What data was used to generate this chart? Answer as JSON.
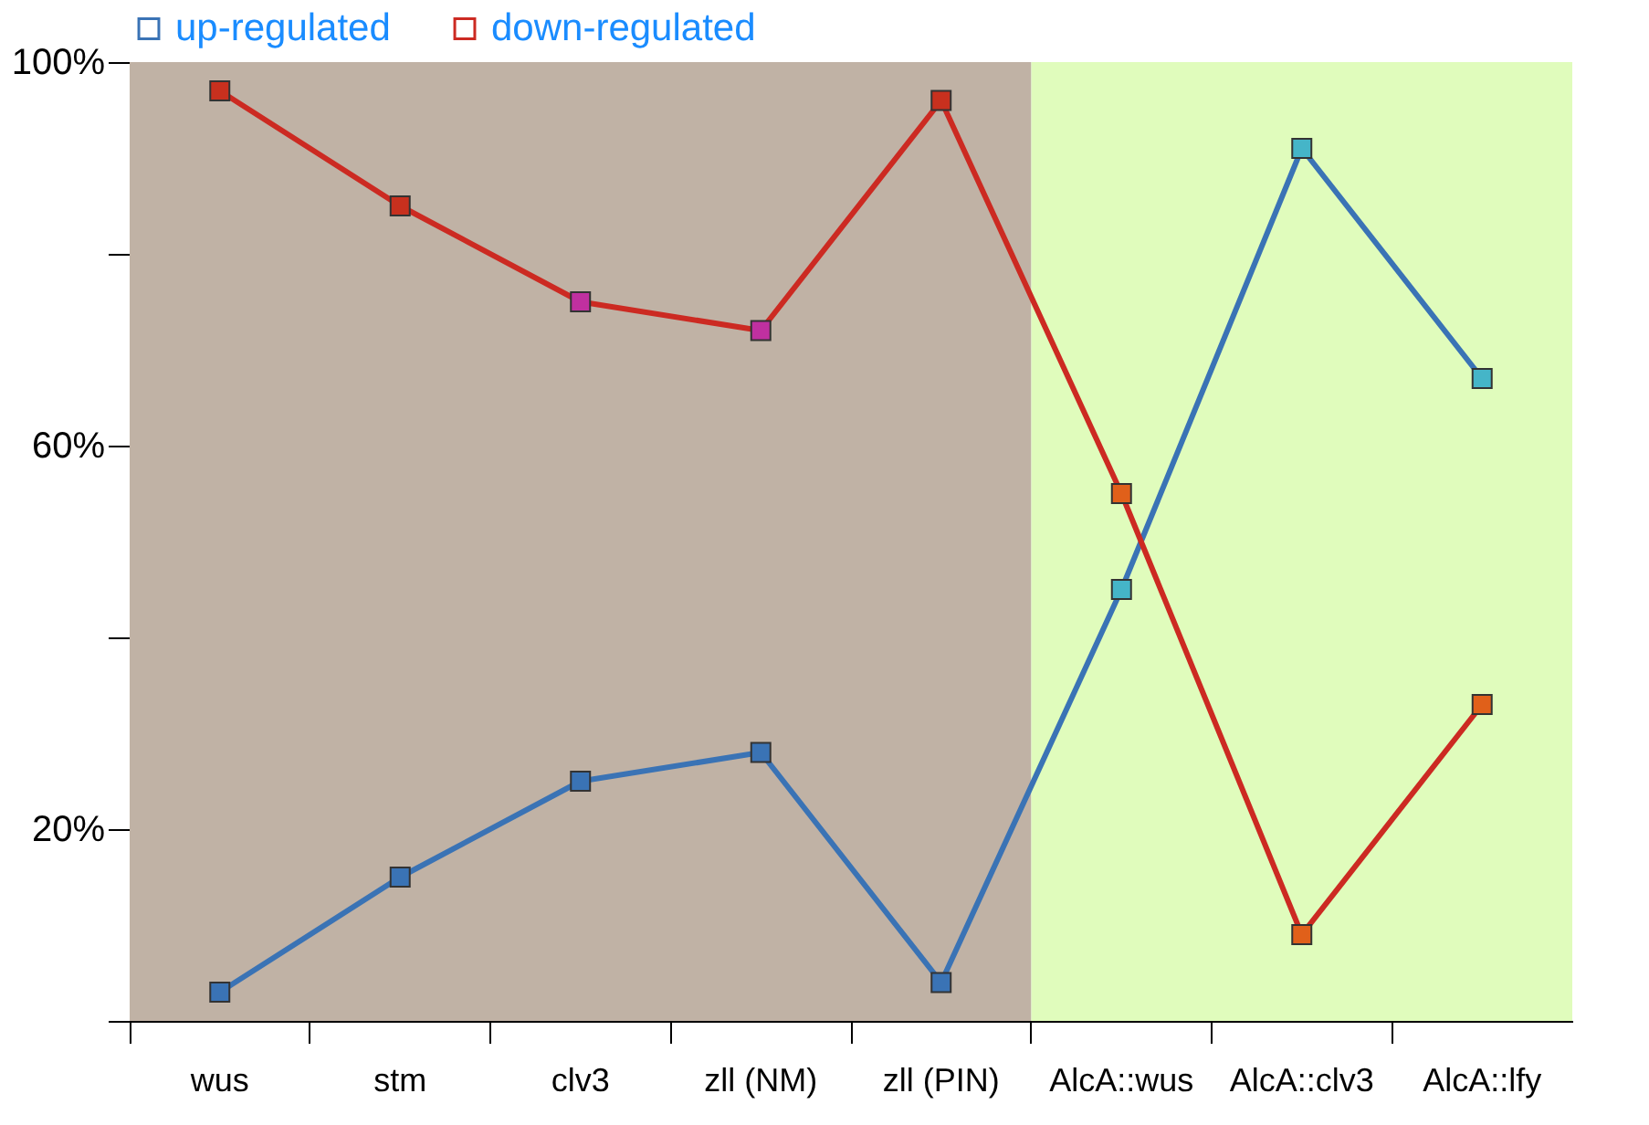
{
  "chart_data": {
    "type": "line",
    "categories": [
      "wus",
      "stm",
      "clv3",
      "zll (NM)",
      "zll (PIN)",
      "AlcA::wus",
      "AlcA::clv3",
      "AlcA::lfy"
    ],
    "series": [
      {
        "name": "up-regulated",
        "color": "#3a73b5",
        "colors": [
          "#3a73b5",
          "#3a73b5",
          "#3a73b5",
          "#3a73b5",
          "#3a73b5",
          "#45b5c8",
          "#45b5c8",
          "#45b5c8"
        ],
        "values": [
          3,
          15,
          25,
          28,
          4,
          45,
          91,
          67
        ]
      },
      {
        "name": "down-regulated",
        "color": "#cc2a22",
        "colors": [
          "#c8301e",
          "#c8301e",
          "#c030a0",
          "#c030a0",
          "#c8301e",
          "#e0601a",
          "#e0601a",
          "#e0601a"
        ],
        "values": [
          97,
          85,
          75,
          72,
          96,
          55,
          9,
          33
        ]
      }
    ],
    "ylim": [
      0,
      100
    ],
    "yticks": [
      {
        "value": 0,
        "label": null
      },
      {
        "value": 20,
        "label": "20%"
      },
      {
        "value": 40,
        "label": null
      },
      {
        "value": 60,
        "label": "60%"
      },
      {
        "value": 80,
        "label": null
      },
      {
        "value": 100,
        "label": "100%"
      }
    ],
    "bands": [
      {
        "axis": "x",
        "from": "wus",
        "to": "zll (PIN)",
        "color": "#c0b2a5"
      },
      {
        "axis": "x",
        "from": "AlcA::wus",
        "to": "AlcA::lfy",
        "color": "#e0fcbc"
      }
    ],
    "marker": "square",
    "legend": "top",
    "grid": false
  }
}
